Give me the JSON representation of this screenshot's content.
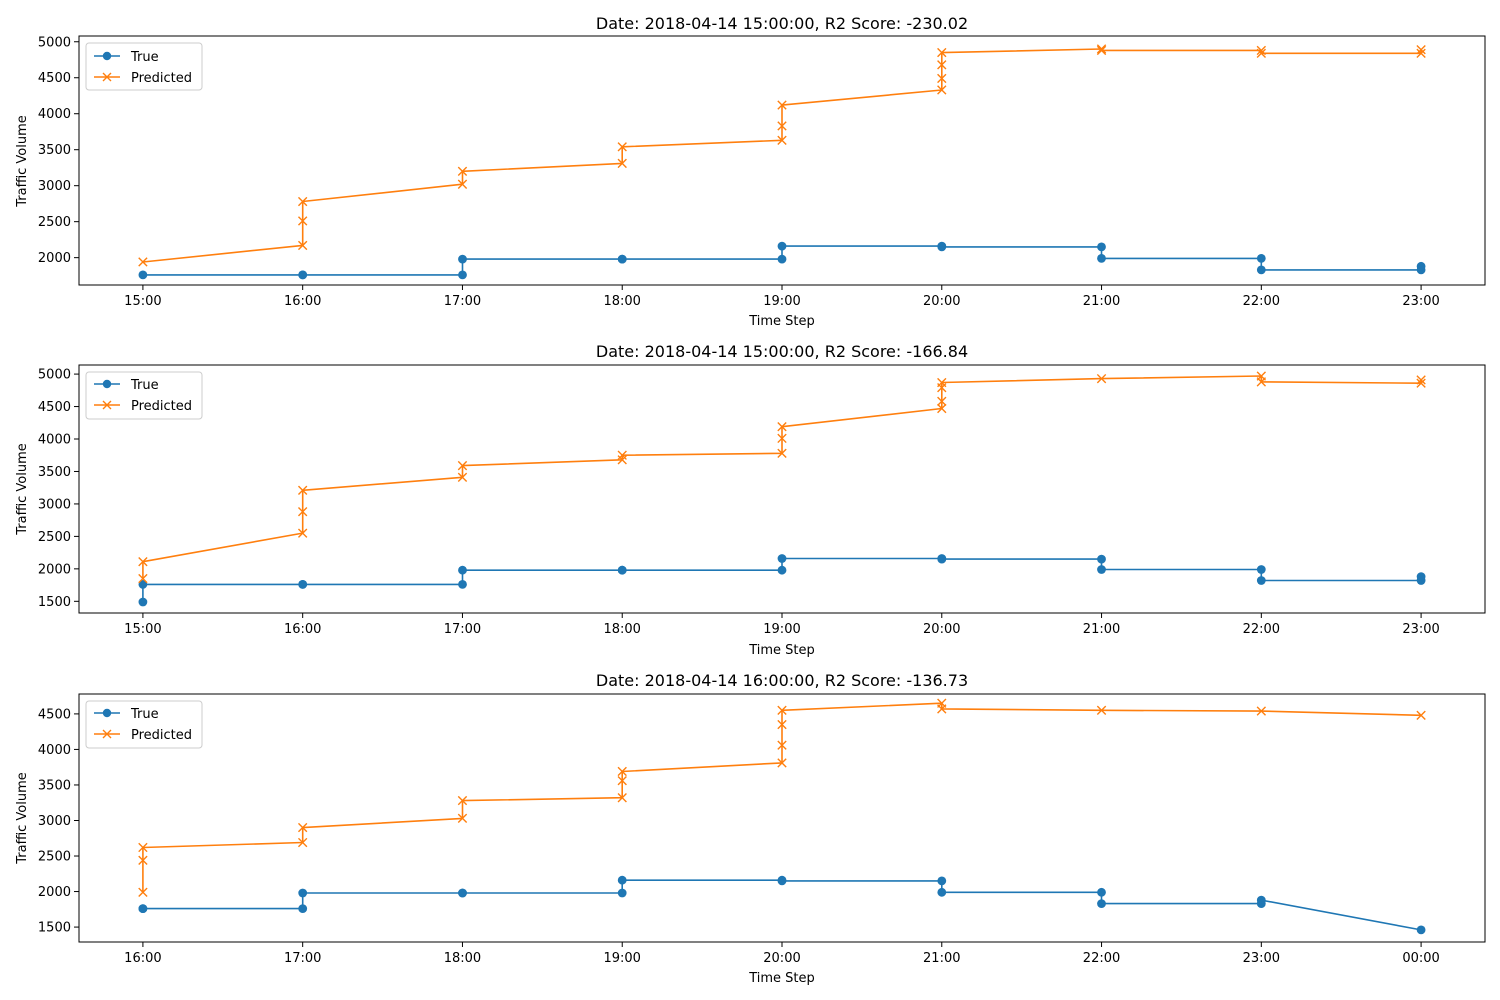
{
  "chart_data": [
    {
      "type": "line",
      "title": "Date: 2018-04-14 15:00:00, R2 Score: -230.02",
      "xlabel": "Time Step",
      "ylabel": "Traffic Volume",
      "xticks": [
        "15:00",
        "16:00",
        "17:00",
        "18:00",
        "19:00",
        "20:00",
        "21:00",
        "22:00",
        "23:00"
      ],
      "xlim": [
        -0.4,
        8.4
      ],
      "ylim": [
        1620,
        5080
      ],
      "yticks": [
        2000,
        2500,
        3000,
        3500,
        4000,
        4500,
        5000
      ],
      "legend": "upper-left",
      "series": [
        {
          "name": "True",
          "color": "#1f77b4",
          "marker": "circle",
          "points": [
            [
              0,
              1760
            ],
            [
              1,
              1760
            ],
            [
              1,
              1760
            ],
            [
              2,
              1760
            ],
            [
              2,
              1980
            ],
            [
              3,
              1980
            ],
            [
              3,
              1980
            ],
            [
              4,
              1980
            ],
            [
              4,
              2160
            ],
            [
              5,
              2160
            ],
            [
              5,
              2150
            ],
            [
              6,
              2150
            ],
            [
              6,
              1990
            ],
            [
              7,
              1990
            ],
            [
              7,
              1830
            ],
            [
              8,
              1830
            ],
            [
              8,
              1880
            ]
          ]
        },
        {
          "name": "Predicted",
          "color": "#ff7f0e",
          "marker": "x",
          "points": [
            [
              0,
              1940
            ],
            [
              1,
              2170
            ],
            [
              1,
              2510
            ],
            [
              1,
              2780
            ],
            [
              2,
              3020
            ],
            [
              2,
              3200
            ],
            [
              3,
              3310
            ],
            [
              3,
              3540
            ],
            [
              4,
              3630
            ],
            [
              4,
              3830
            ],
            [
              4,
              4120
            ],
            [
              5,
              4330
            ],
            [
              5,
              4490
            ],
            [
              5,
              4680
            ],
            [
              5,
              4850
            ],
            [
              6,
              4900
            ],
            [
              6,
              4880
            ],
            [
              7,
              4880
            ],
            [
              7,
              4840
            ],
            [
              8,
              4840
            ],
            [
              8,
              4890
            ]
          ]
        }
      ]
    },
    {
      "type": "line",
      "title": "Date: 2018-04-14 15:00:00, R2 Score: -166.84",
      "xlabel": "Time Step",
      "ylabel": "Traffic Volume",
      "xticks": [
        "15:00",
        "16:00",
        "17:00",
        "18:00",
        "19:00",
        "20:00",
        "21:00",
        "22:00",
        "23:00"
      ],
      "xlim": [
        -0.4,
        8.4
      ],
      "ylim": [
        1320,
        5140
      ],
      "yticks": [
        1500,
        2000,
        2500,
        3000,
        3500,
        4000,
        4500,
        5000
      ],
      "legend": "upper-left",
      "series": [
        {
          "name": "True",
          "color": "#1f77b4",
          "marker": "circle",
          "points": [
            [
              0,
              1490
            ],
            [
              0,
              1760
            ],
            [
              1,
              1760
            ],
            [
              1,
              1760
            ],
            [
              2,
              1760
            ],
            [
              2,
              1980
            ],
            [
              3,
              1980
            ],
            [
              3,
              1980
            ],
            [
              4,
              1980
            ],
            [
              4,
              2160
            ],
            [
              5,
              2160
            ],
            [
              5,
              2150
            ],
            [
              6,
              2150
            ],
            [
              6,
              1990
            ],
            [
              7,
              1990
            ],
            [
              7,
              1820
            ],
            [
              8,
              1820
            ],
            [
              8,
              1880
            ]
          ]
        },
        {
          "name": "Predicted",
          "color": "#ff7f0e",
          "marker": "x",
          "points": [
            [
              0,
              1850
            ],
            [
              0,
              2110
            ],
            [
              1,
              2550
            ],
            [
              1,
              2880
            ],
            [
              1,
              3210
            ],
            [
              2,
              3410
            ],
            [
              2,
              3590
            ],
            [
              3,
              3680
            ],
            [
              3,
              3750
            ],
            [
              4,
              3780
            ],
            [
              4,
              4010
            ],
            [
              4,
              4190
            ],
            [
              5,
              4470
            ],
            [
              5,
              4580
            ],
            [
              5,
              4790
            ],
            [
              5,
              4870
            ],
            [
              6,
              4930
            ],
            [
              7,
              4970
            ],
            [
              7,
              4880
            ],
            [
              8,
              4860
            ],
            [
              8,
              4910
            ]
          ]
        }
      ]
    },
    {
      "type": "line",
      "title": "Date: 2018-04-14 16:00:00, R2 Score: -136.73",
      "xlabel": "Time Step",
      "ylabel": "Traffic Volume",
      "xticks": [
        "16:00",
        "17:00",
        "18:00",
        "19:00",
        "20:00",
        "21:00",
        "22:00",
        "23:00",
        "00:00"
      ],
      "xlim": [
        -0.4,
        8.4
      ],
      "ylim": [
        1290,
        4780
      ],
      "yticks": [
        1500,
        2000,
        2500,
        3000,
        3500,
        4000,
        4500
      ],
      "legend": "upper-left",
      "series": [
        {
          "name": "True",
          "color": "#1f77b4",
          "marker": "circle",
          "points": [
            [
              0,
              1760
            ],
            [
              0,
              1760
            ],
            [
              1,
              1760
            ],
            [
              1,
              1980
            ],
            [
              2,
              1980
            ],
            [
              2,
              1980
            ],
            [
              3,
              1980
            ],
            [
              3,
              2160
            ],
            [
              4,
              2160
            ],
            [
              4,
              2150
            ],
            [
              5,
              2150
            ],
            [
              5,
              1990
            ],
            [
              6,
              1990
            ],
            [
              6,
              1830
            ],
            [
              7,
              1830
            ],
            [
              7,
              1880
            ],
            [
              8,
              1460
            ]
          ]
        },
        {
          "name": "Predicted",
          "color": "#ff7f0e",
          "marker": "x",
          "points": [
            [
              0,
              1990
            ],
            [
              0,
              2440
            ],
            [
              0,
              2620
            ],
            [
              1,
              2690
            ],
            [
              1,
              2900
            ],
            [
              2,
              3030
            ],
            [
              2,
              3280
            ],
            [
              3,
              3320
            ],
            [
              3,
              3560
            ],
            [
              3,
              3690
            ],
            [
              4,
              3810
            ],
            [
              4,
              4060
            ],
            [
              4,
              4350
            ],
            [
              4,
              4550
            ],
            [
              5,
              4650
            ],
            [
              5,
              4570
            ],
            [
              6,
              4550
            ],
            [
              7,
              4540
            ],
            [
              8,
              4480
            ]
          ]
        }
      ]
    }
  ]
}
